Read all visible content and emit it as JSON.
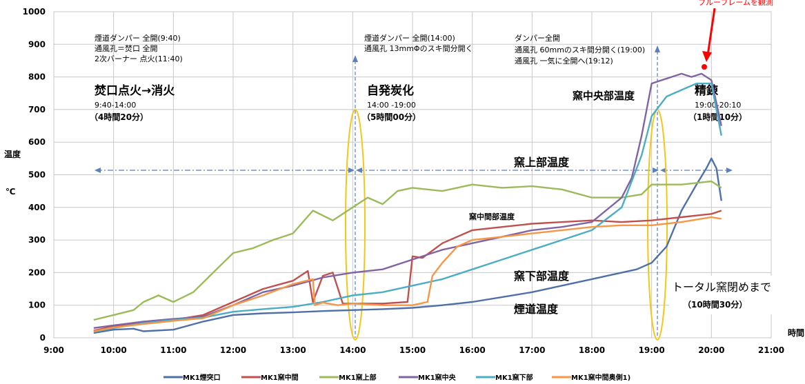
{
  "chart_data": {
    "type": "line",
    "xlabel": "時間",
    "ylabel": "温度",
    "yunit": "℃",
    "ylim": [
      0,
      1000
    ],
    "yticks": [
      0,
      100,
      200,
      300,
      400,
      500,
      600,
      700,
      800,
      900,
      1000
    ],
    "xlim": [
      "9:00",
      "21:00"
    ],
    "xticks": [
      "9:00",
      "10:00",
      "11:00",
      "12:00",
      "13:00",
      "14:00",
      "15:00",
      "16:00",
      "17:00",
      "18:00",
      "19:00",
      "20:00",
      "21:00"
    ],
    "grid": true,
    "legend_position": "bottom",
    "series": [
      {
        "name": "MK1煙突口",
        "color": "#4F6FA8",
        "x": [
          "9:40",
          "10:00",
          "10:20",
          "10:30",
          "11:00",
          "11:30",
          "12:00",
          "12:30",
          "13:00",
          "13:30",
          "14:00",
          "14:30",
          "15:00",
          "15:30",
          "16:00",
          "16:30",
          "17:00",
          "17:30",
          "18:00",
          "18:30",
          "18:45",
          "19:00",
          "19:15",
          "19:30",
          "19:45",
          "19:55",
          "20:00",
          "20:05",
          "20:10"
        ],
        "y": [
          15,
          25,
          28,
          20,
          25,
          50,
          70,
          75,
          78,
          82,
          85,
          88,
          92,
          100,
          110,
          125,
          140,
          160,
          180,
          200,
          210,
          230,
          280,
          390,
          470,
          520,
          550,
          520,
          420
        ]
      },
      {
        "name": "MK1窯中間",
        "color": "#C0504D",
        "x": [
          "9:40",
          "10:00",
          "10:30",
          "11:00",
          "11:30",
          "12:00",
          "12:30",
          "13:00",
          "13:15",
          "13:20",
          "13:30",
          "13:40",
          "13:50",
          "14:00",
          "14:30",
          "14:55",
          "15:00",
          "15:10",
          "15:30",
          "16:00",
          "16:30",
          "17:00",
          "17:30",
          "18:00",
          "18:30",
          "19:00",
          "19:30",
          "20:00",
          "20:10"
        ],
        "y": [
          22,
          35,
          45,
          55,
          70,
          110,
          150,
          175,
          205,
          110,
          190,
          200,
          105,
          105,
          105,
          110,
          250,
          245,
          290,
          330,
          340,
          350,
          355,
          360,
          355,
          360,
          370,
          380,
          390
        ]
      },
      {
        "name": "MK1窯上部",
        "color": "#9BBB59",
        "x": [
          "9:40",
          "10:00",
          "10:20",
          "10:30",
          "10:45",
          "11:00",
          "11:20",
          "11:40",
          "12:00",
          "12:20",
          "12:40",
          "13:00",
          "13:20",
          "13:40",
          "14:00",
          "14:15",
          "14:30",
          "14:45",
          "15:00",
          "15:30",
          "16:00",
          "16:30",
          "17:00",
          "17:30",
          "18:00",
          "18:30",
          "18:50",
          "19:00",
          "19:30",
          "20:00",
          "20:10"
        ],
        "y": [
          55,
          70,
          85,
          110,
          130,
          110,
          140,
          200,
          260,
          275,
          300,
          320,
          390,
          360,
          400,
          430,
          410,
          450,
          460,
          450,
          470,
          460,
          465,
          455,
          430,
          430,
          440,
          470,
          470,
          480,
          460
        ]
      },
      {
        "name": "MK1窯中央",
        "color": "#8064A2",
        "x": [
          "9:40",
          "10:00",
          "10:30",
          "11:00",
          "11:30",
          "12:00",
          "12:30",
          "13:00",
          "13:30",
          "14:00",
          "14:30",
          "15:00",
          "15:30",
          "16:00",
          "16:30",
          "17:00",
          "17:30",
          "18:00",
          "18:30",
          "18:40",
          "18:50",
          "19:00",
          "19:10",
          "19:20",
          "19:30",
          "19:40",
          "19:50",
          "20:00",
          "20:05",
          "20:10"
        ],
        "y": [
          30,
          38,
          50,
          58,
          65,
          100,
          140,
          160,
          185,
          200,
          210,
          240,
          270,
          290,
          310,
          330,
          340,
          355,
          430,
          490,
          620,
          780,
          790,
          800,
          810,
          800,
          810,
          790,
          720,
          650
        ]
      },
      {
        "name": "MK1窯下部",
        "color": "#4BACC6",
        "x": [
          "9:40",
          "10:00",
          "10:30",
          "11:00",
          "11:30",
          "12:00",
          "12:30",
          "13:00",
          "13:30",
          "14:00",
          "14:30",
          "15:00",
          "15:30",
          "16:00",
          "16:30",
          "17:00",
          "17:30",
          "18:00",
          "18:30",
          "18:40",
          "18:50",
          "19:00",
          "19:15",
          "19:30",
          "19:45",
          "20:00",
          "20:05",
          "20:10"
        ],
        "y": [
          18,
          30,
          45,
          55,
          62,
          80,
          88,
          95,
          110,
          130,
          140,
          160,
          180,
          210,
          240,
          270,
          300,
          330,
          400,
          480,
          560,
          680,
          740,
          760,
          780,
          780,
          700,
          620
        ]
      },
      {
        "name": "MK1窯中間奥側1)",
        "color": "#F79646",
        "x": [
          "9:40",
          "10:00",
          "10:30",
          "11:00",
          "11:30",
          "12:00",
          "12:30",
          "13:00",
          "13:20",
          "13:22",
          "13:30",
          "13:45",
          "14:00",
          "14:30",
          "15:00",
          "15:15",
          "15:20",
          "15:30",
          "15:45",
          "16:00",
          "16:30",
          "17:00",
          "17:30",
          "18:00",
          "18:30",
          "19:00",
          "19:30",
          "20:00",
          "20:10"
        ],
        "y": [
          20,
          32,
          42,
          52,
          60,
          100,
          130,
          165,
          180,
          100,
          108,
          100,
          105,
          100,
          100,
          110,
          190,
          230,
          280,
          300,
          310,
          320,
          330,
          340,
          345,
          345,
          355,
          370,
          365
        ]
      }
    ],
    "annotations": {
      "left_notes": [
        "煙道ダンパー 全開(9:40)",
        "通風孔＝焚口 全開",
        "2次バーナー 点火(11:40)"
      ],
      "mid_notes": [
        "煙道ダンパー 全開(14:00)",
        "通風孔 13mmΦのスキ間分開く"
      ],
      "right_notes": [
        "ダンパー全開",
        "通風孔 60mmのスキ間分開く(19:00)",
        "通風孔 一気に全開へ(19:12)"
      ],
      "phase1_title": "焚口点火→消火",
      "phase1_time": "9:40-14:00",
      "phase1_dur": "（4時間20分）",
      "phase2_title": "自発炭化",
      "phase2_time": "14:00 -19:00",
      "phase2_dur": "（5時間00分）",
      "phase3_title": "精錬",
      "phase3_time": "19:00-20:10",
      "phase3_dur": "（1時間10分）",
      "label_center": "窯中央部温度",
      "label_top": "窯上部温度",
      "label_mid": "窯中間部温度",
      "label_low": "窯下部温度",
      "label_flue": "煙道温度",
      "total_title": "トータル窯閉めまで",
      "total_dur": "（10時間30分）",
      "blue_flame": "ブルーフレームを観測"
    }
  }
}
